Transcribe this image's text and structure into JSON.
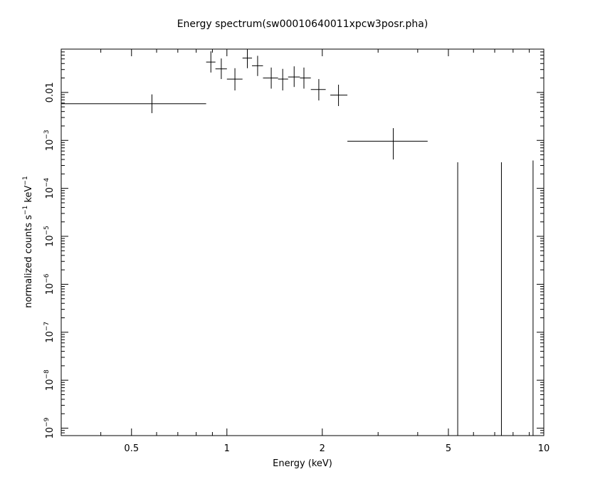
{
  "chart_data": {
    "type": "scatter",
    "title": "Energy spectrum(sw00010640011xpcw3posr.pha)",
    "xlabel": "Energy (keV)",
    "ylabel_parts": {
      "main": "normalized counts s",
      "exp1": "−1",
      "mid": " keV",
      "exp2": "−1"
    },
    "xscale": "log",
    "yscale": "log",
    "xlim": [
      0.3,
      10.0
    ],
    "ylim": [
      7e-10,
      0.08
    ],
    "xticks": [
      {
        "value": 0.5,
        "label": "0.5"
      },
      {
        "value": 1,
        "label": "1"
      },
      {
        "value": 2,
        "label": "2"
      },
      {
        "value": 5,
        "label": "5"
      },
      {
        "value": 10,
        "label": "10"
      }
    ],
    "yticks": [
      {
        "value": 0.01,
        "label": "0.01"
      },
      {
        "value": 0.001,
        "base": "10",
        "exp": "−3"
      },
      {
        "value": 0.0001,
        "base": "10",
        "exp": "−4"
      },
      {
        "value": 1e-05,
        "base": "10",
        "exp": "−5"
      },
      {
        "value": 1e-06,
        "base": "10",
        "exp": "−6"
      },
      {
        "value": 1e-07,
        "base": "10",
        "exp": "−7"
      },
      {
        "value": 1e-08,
        "base": "10",
        "exp": "−8"
      },
      {
        "value": 1e-09,
        "base": "10",
        "exp": "−9"
      }
    ],
    "points": [
      {
        "x": 0.58,
        "xlo": 0.3,
        "xhi": 0.86,
        "y": 0.0058,
        "ylo": 0.0037,
        "yhi": 0.0091
      },
      {
        "x": 0.89,
        "xlo": 0.86,
        "xhi": 0.92,
        "y": 0.043,
        "ylo": 0.026,
        "yhi": 0.072
      },
      {
        "x": 0.96,
        "xlo": 0.92,
        "xhi": 1.0,
        "y": 0.031,
        "ylo": 0.019,
        "yhi": 0.051
      },
      {
        "x": 1.06,
        "xlo": 1.0,
        "xhi": 1.12,
        "y": 0.019,
        "ylo": 0.011,
        "yhi": 0.032
      },
      {
        "x": 1.16,
        "xlo": 1.12,
        "xhi": 1.2,
        "y": 0.052,
        "ylo": 0.032,
        "yhi": 0.085
      },
      {
        "x": 1.25,
        "xlo": 1.2,
        "xhi": 1.3,
        "y": 0.036,
        "ylo": 0.022,
        "yhi": 0.058
      },
      {
        "x": 1.38,
        "xlo": 1.3,
        "xhi": 1.45,
        "y": 0.02,
        "ylo": 0.012,
        "yhi": 0.033
      },
      {
        "x": 1.5,
        "xlo": 1.45,
        "xhi": 1.56,
        "y": 0.019,
        "ylo": 0.011,
        "yhi": 0.031
      },
      {
        "x": 1.63,
        "xlo": 1.56,
        "xhi": 1.7,
        "y": 0.021,
        "ylo": 0.013,
        "yhi": 0.035
      },
      {
        "x": 1.75,
        "xlo": 1.7,
        "xhi": 1.84,
        "y": 0.02,
        "ylo": 0.012,
        "yhi": 0.033
      },
      {
        "x": 1.95,
        "xlo": 1.84,
        "xhi": 2.05,
        "y": 0.0115,
        "ylo": 0.0068,
        "yhi": 0.019
      },
      {
        "x": 2.25,
        "xlo": 2.12,
        "xhi": 2.4,
        "y": 0.0088,
        "ylo": 0.0052,
        "yhi": 0.0145
      },
      {
        "x": 3.35,
        "xlo": 2.4,
        "xhi": 4.3,
        "y": 0.00096,
        "ylo": 0.0004,
        "yhi": 0.0018
      },
      {
        "x": 5.35,
        "y": 1e-09,
        "ylo": 7e-10,
        "yhi": 0.00035
      },
      {
        "x": 7.35,
        "y": 1e-09,
        "ylo": 7e-10,
        "yhi": 0.00035
      },
      {
        "x": 9.25,
        "y": 1e-09,
        "ylo": 7e-10,
        "yhi": 0.00038
      }
    ]
  }
}
